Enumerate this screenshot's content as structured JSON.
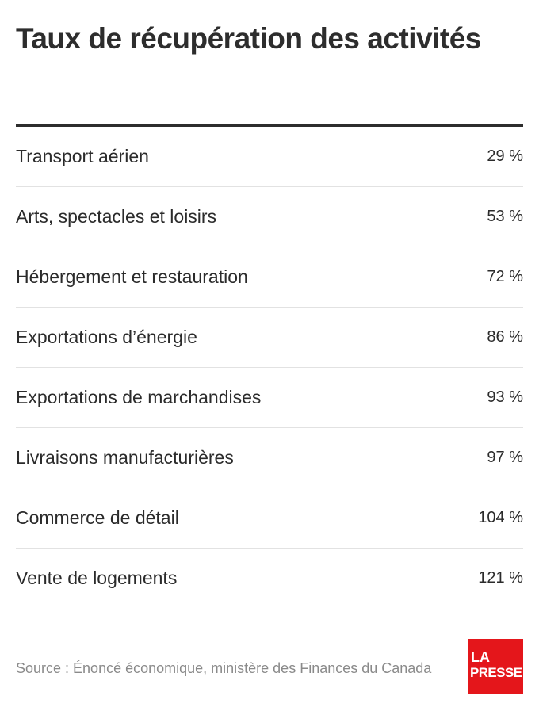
{
  "title": "Taux de récupération des activités",
  "rows": [
    {
      "label": "Transport aérien",
      "value": "29 %"
    },
    {
      "label": "Arts, spectacles et loisirs",
      "value": "53 %"
    },
    {
      "label": "Hébergement et restauration",
      "value": "72 %"
    },
    {
      "label": "Exportations d’énergie",
      "value": "86 %"
    },
    {
      "label": "Exportations de marchandises",
      "value": "93 %"
    },
    {
      "label": "Livraisons manufacturières",
      "value": "97 %"
    },
    {
      "label": "Commerce de détail",
      "value": "104 %"
    },
    {
      "label": "Vente de logements",
      "value": "121 %"
    }
  ],
  "source": "Source : Énoncé économique, ministère des Finances du Canada",
  "logo": {
    "line1": "LA",
    "line2": "PRESSE",
    "color": "#e4161b"
  }
}
